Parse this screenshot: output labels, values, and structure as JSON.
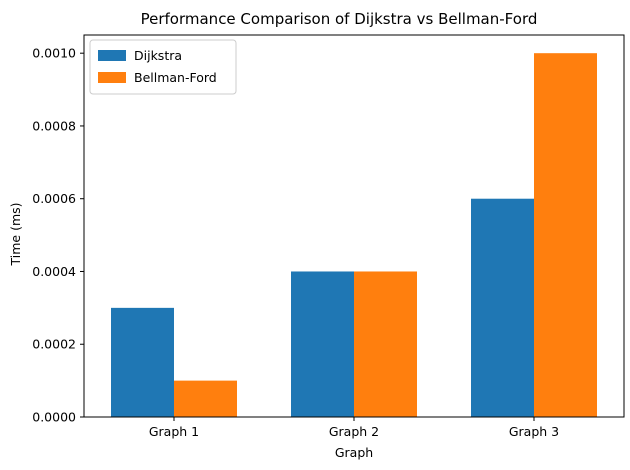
{
  "chart_data": {
    "type": "bar",
    "title": "Performance Comparison of Dijkstra vs Bellman-Ford",
    "xlabel": "Graph",
    "ylabel": "Time (ms)",
    "categories": [
      "Graph 1",
      "Graph 2",
      "Graph 3"
    ],
    "series": [
      {
        "name": "Dijkstra",
        "values": [
          0.0003,
          0.0004,
          0.0006
        ],
        "color": "#1f77b4"
      },
      {
        "name": "Bellman-Ford",
        "values": [
          0.0001,
          0.0004,
          0.001
        ],
        "color": "#ff7f0e"
      }
    ],
    "ylim": [
      0,
      0.00105
    ],
    "yticks": [
      "0.0000",
      "0.0002",
      "0.0004",
      "0.0006",
      "0.0008",
      "0.0010"
    ],
    "ytick_values": [
      0,
      0.0002,
      0.0004,
      0.0006,
      0.0008,
      0.001
    ],
    "grid": false,
    "legend_position": "top-left"
  }
}
